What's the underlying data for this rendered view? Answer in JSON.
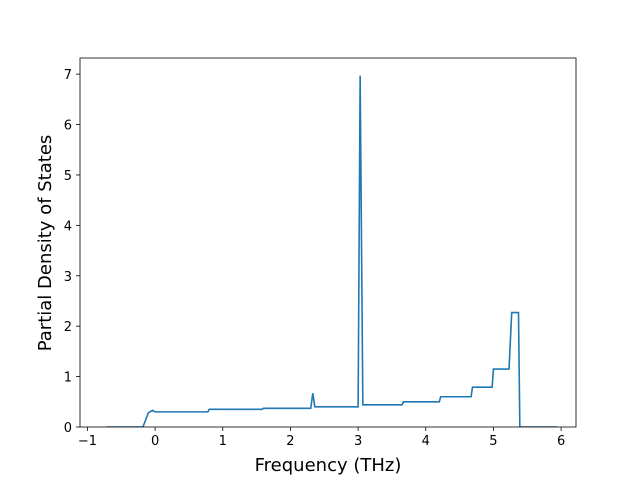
{
  "chart_data": {
    "type": "line",
    "x_label": "Frequency (THz)",
    "y_label": "Partial Density of States",
    "x": [
      -0.72,
      -0.18,
      -0.1,
      -0.04,
      0.0,
      0.78,
      0.8,
      1.58,
      1.6,
      2.3,
      2.33,
      2.36,
      3.0,
      3.03,
      3.07,
      3.65,
      3.67,
      4.2,
      4.22,
      4.67,
      4.69,
      4.98,
      5.0,
      5.23,
      5.27,
      5.37,
      5.39,
      5.94
    ],
    "values": [
      0,
      0,
      0.28,
      0.33,
      0.3,
      0.3,
      0.35,
      0.35,
      0.37,
      0.37,
      0.67,
      0.4,
      0.4,
      6.97,
      0.44,
      0.44,
      0.5,
      0.5,
      0.6,
      0.6,
      0.79,
      0.79,
      1.15,
      1.15,
      2.27,
      2.27,
      0,
      0
    ],
    "color": "#1f77b4",
    "xlim": [
      -1.11,
      6.22
    ],
    "ylim": [
      0,
      7.32
    ],
    "xticks": [
      {
        "value": -1,
        "label": "−1"
      },
      0,
      1,
      2,
      3,
      4,
      5,
      6
    ],
    "yticks": [
      0,
      1,
      2,
      3,
      4,
      5,
      6,
      7
    ]
  }
}
